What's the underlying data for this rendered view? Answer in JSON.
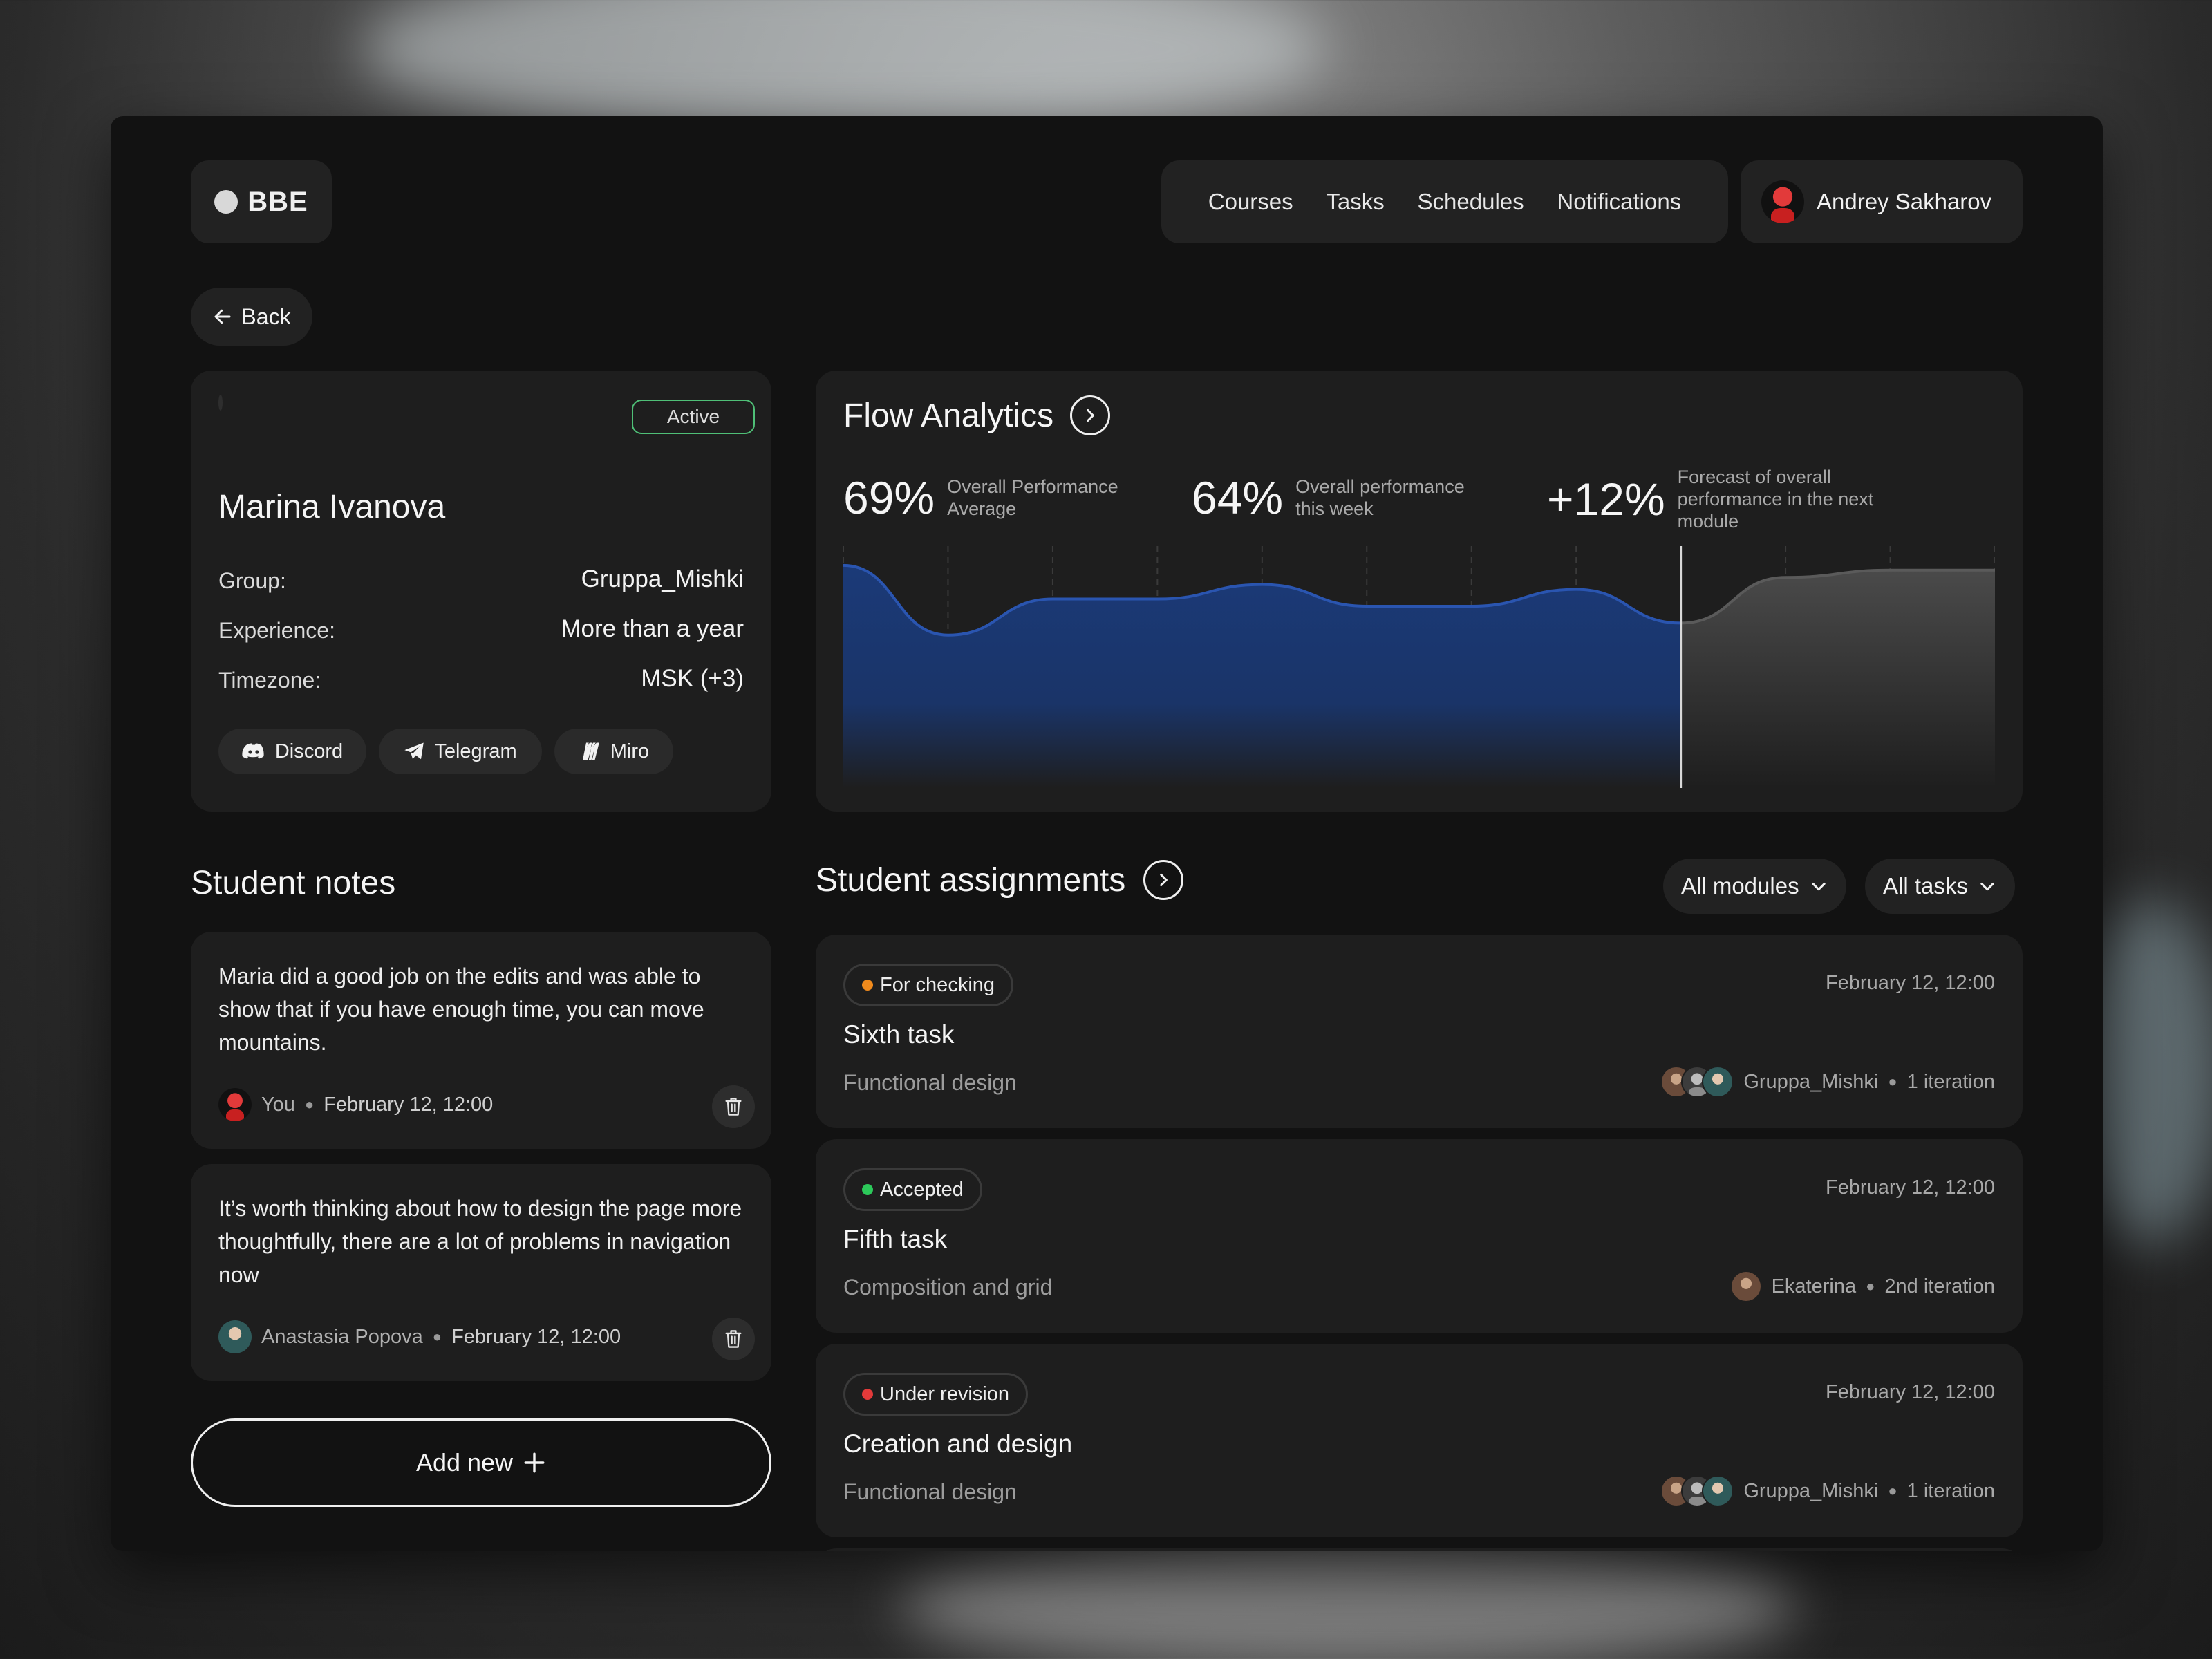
{
  "brand": {
    "name": "BBE"
  },
  "nav": {
    "items": [
      "Courses",
      "Tasks",
      "Schedules",
      "Notifications"
    ],
    "user_name": "Andrey Sakharov"
  },
  "back_label": "Back",
  "profile": {
    "status": "Active",
    "name": "Marina Ivanova",
    "rows": [
      {
        "label": "Group:",
        "value": "Gruppa_Mishki"
      },
      {
        "label": "Experience:",
        "value": "More than a year"
      },
      {
        "label": "Timezone:",
        "value": "MSK (+3)"
      }
    ],
    "socials": [
      "Discord",
      "Telegram",
      "Miro"
    ]
  },
  "analytics": {
    "title": "Flow Analytics",
    "stats": [
      {
        "value": "69%",
        "label_1": "Overall Performance",
        "label_2": "Average",
        "label_3": ""
      },
      {
        "value": "64%",
        "label_1": "Overall performance",
        "label_2": "this week",
        "label_3": ""
      },
      {
        "value": "+12%",
        "label_1": "Forecast of overall",
        "label_2": "performance in the next",
        "label_3": "module"
      }
    ],
    "chart_data": {
      "type": "area",
      "series": [
        {
          "values": [
            92,
            63,
            78,
            78,
            84,
            75,
            75,
            82,
            68
          ]
        },
        {
          "values": [
            68,
            87,
            90,
            90
          ]
        }
      ],
      "forecast_start_index": 8,
      "colors": {
        "actual": "#1d3d7a",
        "actual_line": "#2a55b0",
        "forecast": "#4a4a4a"
      }
    }
  },
  "notes": {
    "title": "Student notes",
    "items": [
      {
        "text": "Maria did a good job on the edits and was able to show that if you have enough time, you can move mountains.",
        "author": "You",
        "date": "February 12, 12:00"
      },
      {
        "text": "It’s worth thinking about how to design the page more thoughtfully, there are a lot of problems in navigation now",
        "author": "Anastasia Popova",
        "date": "February 12, 12:00"
      }
    ],
    "add_label": "Add new"
  },
  "assignments": {
    "title": "Student assignments",
    "filters": [
      "All modules",
      "All tasks"
    ],
    "items": [
      {
        "status": "For checking",
        "status_color": "#f08a1c",
        "date": "February 12, 12:00",
        "name": "Sixth task",
        "module": "Functional design",
        "who": "Gruppa_Mishki",
        "iteration": "1 iteration"
      },
      {
        "status": "Accepted",
        "status_color": "#2cc95a",
        "date": "February 12, 12:00",
        "name": "Fifth task",
        "module": "Composition and grid",
        "who": "Ekaterina",
        "iteration": "2nd iteration"
      },
      {
        "status": "Under revision",
        "status_color": "#e23a3a",
        "date": "February 12, 12:00",
        "name": "Creation and design",
        "module": "Functional design",
        "who": "Gruppa_Mishki",
        "iteration": "1 iteration"
      }
    ]
  }
}
